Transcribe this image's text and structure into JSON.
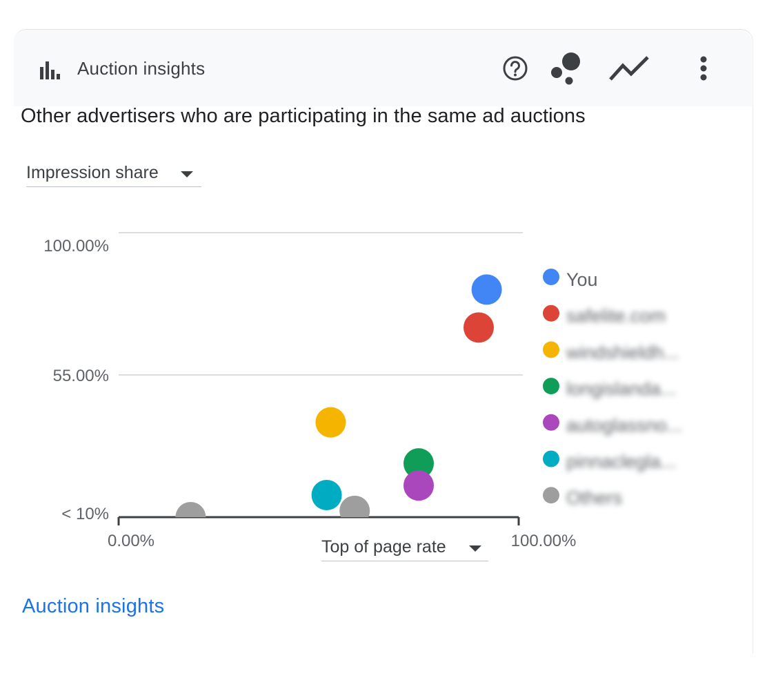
{
  "header": {
    "title": "Auction insights",
    "icons": {
      "chart": "bar-chart-icon",
      "help": "help-circle-icon",
      "bubble": "bubble-chart-icon",
      "line": "line-chart-icon",
      "more": "more-vert-icon"
    }
  },
  "subtitle": "Other advertisers who are participating in the same ad auctions",
  "y_metric_select": {
    "value": "Impression share"
  },
  "x_metric_select": {
    "value": "Top of page rate"
  },
  "footer_link": "Auction insights",
  "chart_data": {
    "type": "scatter",
    "x_ticks": [
      "0.00%",
      "100.00%"
    ],
    "y_ticks": [
      "< 10%",
      "55.00%",
      "100.00%"
    ],
    "xlim": [
      0,
      100
    ],
    "ylim": [
      10,
      100
    ],
    "legend_position": "right",
    "series": [
      {
        "name": "You",
        "color": "#4285f4",
        "points": [
          [
            92,
            82
          ]
        ]
      },
      {
        "name": "safelite.com",
        "color": "#db4437",
        "points": [
          [
            90,
            70
          ]
        ]
      },
      {
        "name": "windshieldh...",
        "color": "#f4b400",
        "points": [
          [
            53,
            40
          ]
        ]
      },
      {
        "name": "longislanda...",
        "color": "#0f9d58",
        "points": [
          [
            75,
            27
          ]
        ]
      },
      {
        "name": "autoglassno...",
        "color": "#ab47bc",
        "points": [
          [
            75,
            20
          ]
        ]
      },
      {
        "name": "pinnaclegla...",
        "color": "#00acc1",
        "points": [
          [
            52,
            17
          ]
        ]
      },
      {
        "name": "Others",
        "color": "#9e9e9e",
        "points": [
          [
            18,
            10
          ],
          [
            59,
            12
          ]
        ]
      }
    ]
  }
}
